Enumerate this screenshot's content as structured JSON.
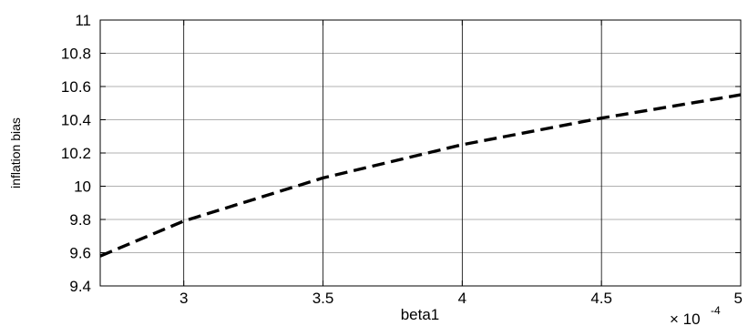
{
  "chart_data": {
    "type": "line",
    "xlabel": "beta1",
    "ylabel": "inflation bias",
    "x_exponent_label": {
      "base": "× 10",
      "exponent": "-4"
    },
    "xlim": [
      0.00027,
      0.0005
    ],
    "ylim": [
      9.4,
      11
    ],
    "x_ticks": [
      0.0003,
      0.00035,
      0.0004,
      0.00045,
      0.0005
    ],
    "x_tick_labels": [
      "3",
      "3.5",
      "4",
      "4.5",
      "5"
    ],
    "y_ticks": [
      9.4,
      9.6,
      9.8,
      10,
      10.2,
      10.4,
      10.6,
      10.8,
      11
    ],
    "y_tick_labels": [
      "9.4",
      "9.6",
      "9.8",
      "10",
      "10.2",
      "10.4",
      "10.6",
      "10.8",
      "11"
    ],
    "grid": true,
    "series": [
      {
        "line_style": "dashed",
        "color": "#000000",
        "x": [
          0.00027,
          0.0003,
          0.00035,
          0.0004,
          0.00045,
          0.0005
        ],
        "y": [
          9.58,
          9.79,
          10.05,
          10.25,
          10.41,
          10.55
        ]
      }
    ]
  }
}
